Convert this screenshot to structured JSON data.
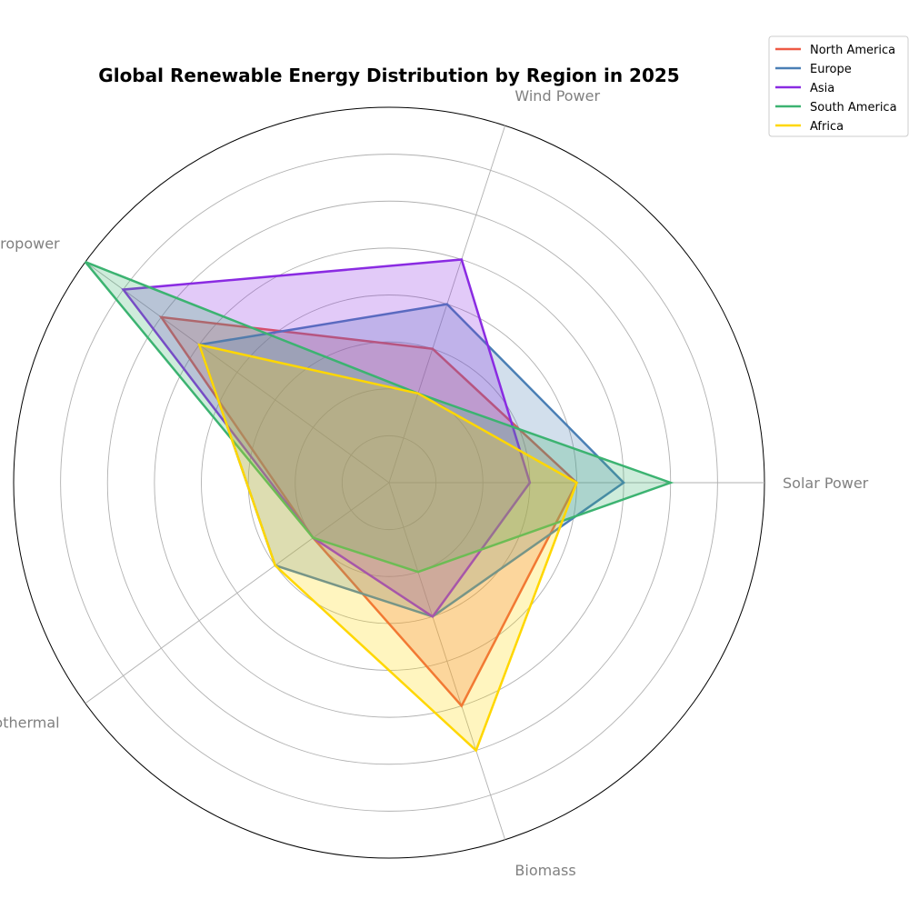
{
  "chart_data": {
    "type": "radar",
    "title": "Global Renewable Energy Distribution by Region in 2025",
    "categories": [
      "Solar Power",
      "Wind Power",
      "Hydropower",
      "Geothermal",
      "Biomass"
    ],
    "rmax": 40,
    "rticks": [
      5,
      10,
      15,
      20,
      25,
      30,
      35,
      40
    ],
    "grid": true,
    "legend_position": "top-right",
    "series": [
      {
        "name": "North America",
        "color": "#EE5A45",
        "values": [
          20,
          15,
          30,
          10,
          25
        ]
      },
      {
        "name": "Europe",
        "color": "#4A7FB5",
        "values": [
          25,
          20,
          25,
          15,
          15
        ]
      },
      {
        "name": "Asia",
        "color": "#8A2BE2",
        "values": [
          15,
          25,
          35,
          10,
          15
        ]
      },
      {
        "name": "South America",
        "color": "#3CB371",
        "values": [
          30,
          10,
          40,
          10,
          10
        ]
      },
      {
        "name": "Africa",
        "color": "#FFD700",
        "values": [
          20,
          10,
          25,
          15,
          30
        ]
      }
    ]
  }
}
